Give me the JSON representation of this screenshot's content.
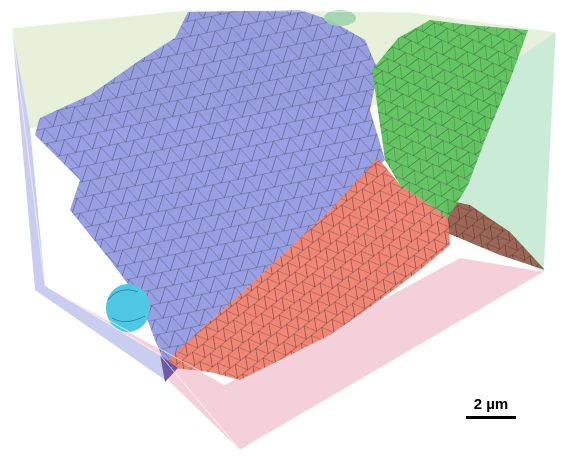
{
  "scale_bar": {
    "label": "2 µm"
  },
  "colors": {
    "background": "#ffffff",
    "box_left_face": "#c3c9ef",
    "box_bottom_face": "#f3cfd8",
    "box_top_face": "#e3efd4",
    "box_right_face": "#c7ead4",
    "grain_blue": "#8f97df",
    "grain_green": "#5dc25d",
    "grain_red": "#ee7f6f",
    "grain_brown": "#9b6656",
    "grain_cyan": "#4fc8e3",
    "mesh_lines": "#2b2b3b"
  },
  "objects": [
    "transparent-bounding-box",
    "blue-grain-surface",
    "green-grain-surface",
    "red-grain-surface",
    "brown-grain-surface",
    "cyan-grain-surface"
  ]
}
